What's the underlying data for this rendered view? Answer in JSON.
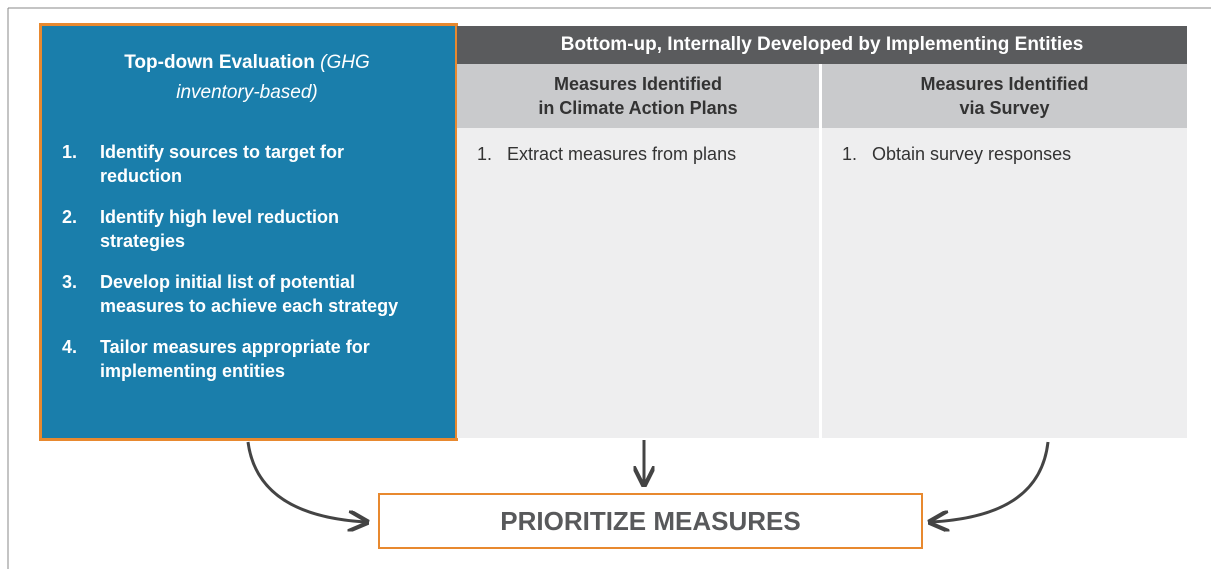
{
  "top_down": {
    "title": "Top-down Evaluation",
    "title_note": "(GHG inventory-based)",
    "items": [
      {
        "number": "1.",
        "text": "Identify sources to target for reduction"
      },
      {
        "number": "2.",
        "text": "Identify high level reduction strategies"
      },
      {
        "number": "3.",
        "text": "Develop initial list of potential measures to achieve each strategy"
      },
      {
        "number": "4.",
        "text": "Tailor measures appropriate for implementing entities"
      }
    ]
  },
  "bottom_up": {
    "title": "Bottom-up, Internally Developed by Implementing Entities",
    "columns": [
      {
        "heading": [
          "Measures Identified",
          "in Climate Action Plans"
        ],
        "items": [
          {
            "number": "1.",
            "text": "Extract measures from plans"
          }
        ]
      },
      {
        "heading": [
          "Measures Identified",
          "via Survey"
        ],
        "items": [
          {
            "number": "1.",
            "text": "Obtain survey responses"
          }
        ]
      }
    ]
  },
  "result": {
    "label": "PRIORITIZE MEASURES"
  }
}
